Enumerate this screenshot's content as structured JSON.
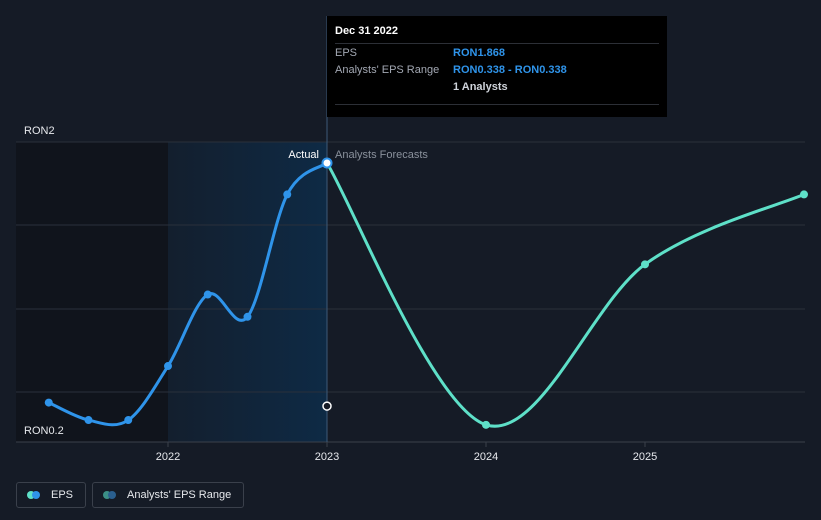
{
  "colors": {
    "actual": "#2f94ea",
    "forecast": "#5ee0c8",
    "highlight": "#0e2a45",
    "background": "#151b26",
    "grid": "#2a303b"
  },
  "chart_data": {
    "type": "line",
    "title": "",
    "xlabel": "",
    "ylabel": "",
    "ylim": [
      0.2,
      2.0
    ],
    "y_tick_labels": [
      {
        "value": 2.0,
        "label": "RON2"
      },
      {
        "value": 0.2,
        "label": "RON0.2"
      }
    ],
    "x_ticks": [
      {
        "value": 2022.0,
        "label": "2022"
      },
      {
        "value": 2023.0,
        "label": "2023"
      },
      {
        "value": 2024.0,
        "label": "2024"
      },
      {
        "value": 2025.0,
        "label": "2025"
      }
    ],
    "grid": true,
    "series": [
      {
        "name": "EPS",
        "role": "actual",
        "points": [
          {
            "x": 2021.25,
            "y": 0.36
          },
          {
            "x": 2021.5,
            "y": 0.25
          },
          {
            "x": 2021.75,
            "y": 0.25
          },
          {
            "x": 2022.0,
            "y": 0.59
          },
          {
            "x": 2022.25,
            "y": 1.04
          },
          {
            "x": 2022.5,
            "y": 0.9
          },
          {
            "x": 2022.75,
            "y": 1.67
          },
          {
            "x": 2023.0,
            "y": 1.868
          }
        ]
      },
      {
        "name": "Analysts Forecasts",
        "role": "forecast",
        "points": [
          {
            "x": 2023.0,
            "y": 1.868
          },
          {
            "x": 2024.0,
            "y": 0.22
          },
          {
            "x": 2025.0,
            "y": 1.23
          },
          {
            "x": 2026.0,
            "y": 1.67
          }
        ]
      }
    ],
    "range_marker": {
      "x": 2023.0,
      "low": 0.338,
      "high": 0.338
    },
    "annotations": {
      "actual_label": "Actual",
      "forecast_label": "Analysts Forecasts",
      "divider_x": 2023.0
    },
    "highlight_range": [
      2022.0,
      2023.0
    ],
    "legend": [
      {
        "label": "EPS"
      },
      {
        "label": "Analysts' EPS Range"
      }
    ],
    "legend_position": "bottom-left"
  },
  "tooltip": {
    "date": "Dec 31 2022",
    "eps_label": "EPS",
    "eps_value": "RON1.868",
    "range_label": "Analysts' EPS Range",
    "range_value": "RON0.338 - RON0.338",
    "analysts": "1 Analysts"
  }
}
